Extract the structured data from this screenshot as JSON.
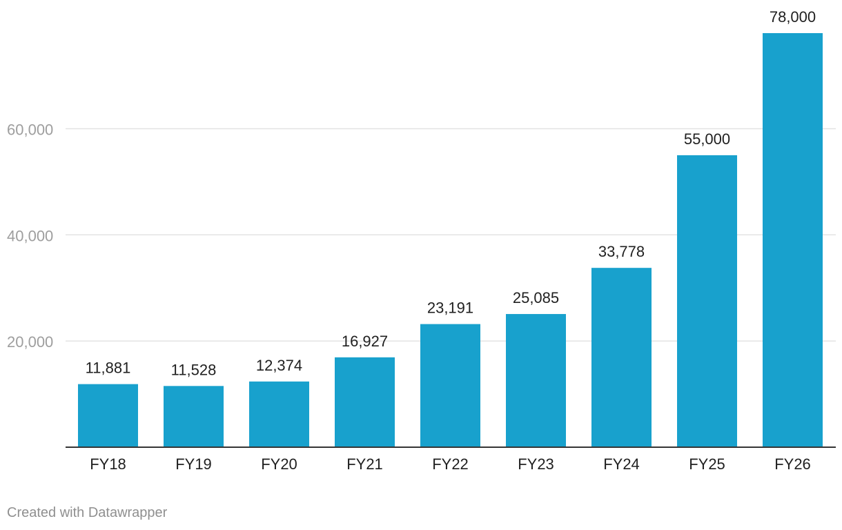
{
  "chart_data": {
    "type": "bar",
    "title": "",
    "xlabel": "",
    "ylabel": "",
    "categories": [
      "FY18",
      "FY19",
      "FY20",
      "FY21",
      "FY22",
      "FY23",
      "FY24",
      "FY25",
      "FY26"
    ],
    "values": [
      11881,
      11528,
      12374,
      16927,
      23191,
      25085,
      33778,
      55000,
      78000
    ],
    "value_labels": [
      "11,881",
      "11,528",
      "12,374",
      "16,927",
      "23,191",
      "25,085",
      "33,778",
      "55,000",
      "78,000"
    ],
    "y_ticks": [
      20000,
      40000,
      60000
    ],
    "y_tick_labels": [
      "20,000",
      "40,000",
      "60,000"
    ],
    "ylim": [
      0,
      78000
    ],
    "grid": true,
    "legend": "none",
    "bar_color": "#18a1cd"
  },
  "footer": {
    "credit": "Created with Datawrapper"
  }
}
